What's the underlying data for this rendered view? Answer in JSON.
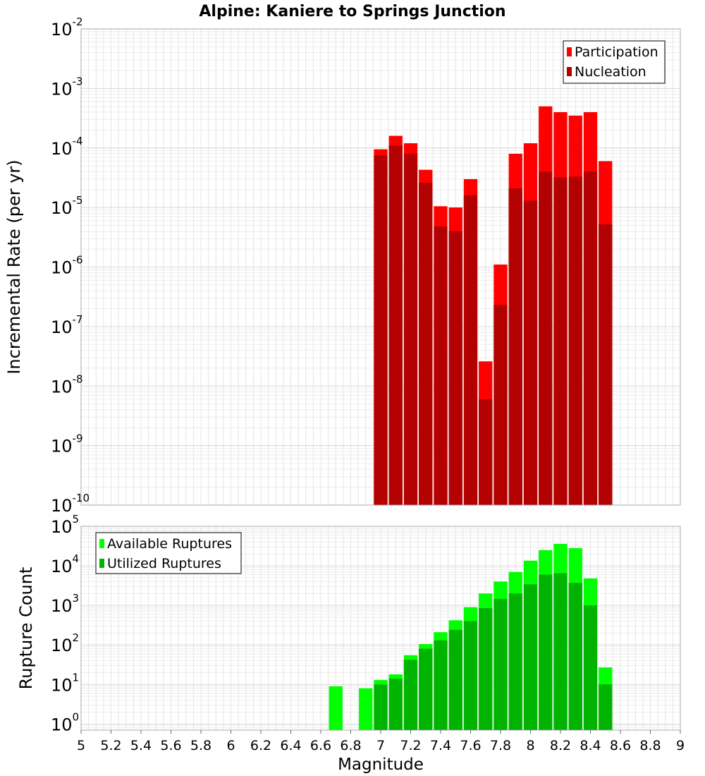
{
  "chart_data": [
    {
      "type": "bar",
      "title": "Alpine: Kaniere to Springs Junction",
      "xlabel": "",
      "ylabel": "Incremental Rate (per yr)",
      "yscale": "log",
      "ylim": [
        1e-10,
        0.01
      ],
      "xlim": [
        5,
        9
      ],
      "grid": true,
      "legend_position": "top-right",
      "ytick_exponents": [
        "-10",
        "-9",
        "-8",
        "-7",
        "-6",
        "-5",
        "-4",
        "-3",
        "-2"
      ],
      "ytick_base": "10",
      "x": [
        7.0,
        7.1,
        7.2,
        7.3,
        7.4,
        7.5,
        7.6,
        7.7,
        7.8,
        7.9,
        8.0,
        8.1,
        8.2,
        8.3,
        8.4,
        8.5
      ],
      "bar_width": 0.1,
      "series": [
        {
          "name": "Participation",
          "color": "#ff0000",
          "values": [
            9.5e-05,
            0.00016,
            0.00012,
            4.3e-05,
            1.05e-05,
            1e-05,
            3e-05,
            2.6e-08,
            1.1e-06,
            8e-05,
            0.00012,
            0.0005,
            0.0004,
            0.00035,
            0.0004,
            6e-05
          ]
        },
        {
          "name": "Nucleation",
          "color": "#b30000",
          "values": [
            7.5e-05,
            0.00011,
            8e-05,
            2.6e-05,
            4.8e-06,
            4e-06,
            1.6e-05,
            6e-09,
            2.3e-07,
            2.1e-05,
            1.3e-05,
            4e-05,
            3.2e-05,
            3.3e-05,
            4e-05,
            5.2e-06
          ]
        }
      ]
    },
    {
      "type": "bar",
      "title": "",
      "xlabel": "Magnitude",
      "ylabel": "Rupture Count",
      "yscale": "log",
      "ylim": [
        0.7,
        100000
      ],
      "xlim": [
        5,
        9
      ],
      "grid": true,
      "legend_position": "top-left",
      "ytick_exponents": [
        "0",
        "1",
        "2",
        "3",
        "4",
        "5"
      ],
      "ytick_base": "10",
      "xticks": [
        "5",
        "5.2",
        "5.4",
        "5.6",
        "5.8",
        "6",
        "6.2",
        "6.4",
        "6.6",
        "6.8",
        "7",
        "7.2",
        "7.4",
        "7.6",
        "7.8",
        "8",
        "8.2",
        "8.4",
        "8.6",
        "8.8",
        "9"
      ],
      "x": [
        6.7,
        6.9,
        7.0,
        7.1,
        7.2,
        7.3,
        7.4,
        7.5,
        7.6,
        7.7,
        7.8,
        7.9,
        8.0,
        8.1,
        8.2,
        8.3,
        8.4,
        8.5
      ],
      "bar_width": 0.1,
      "series": [
        {
          "name": "Available Ruptures",
          "color": "#00ff00",
          "values": [
            9,
            8,
            13,
            18,
            55,
            105,
            210,
            420,
            900,
            2000,
            4000,
            7000,
            13500,
            25000,
            36000,
            28000,
            4800,
            27
          ]
        },
        {
          "name": "Utilized Ruptures",
          "color": "#00b300",
          "values": [
            0,
            0,
            10,
            14,
            42,
            80,
            130,
            240,
            400,
            850,
            1450,
            2000,
            3400,
            6000,
            6500,
            3700,
            1000,
            10
          ]
        }
      ]
    }
  ]
}
